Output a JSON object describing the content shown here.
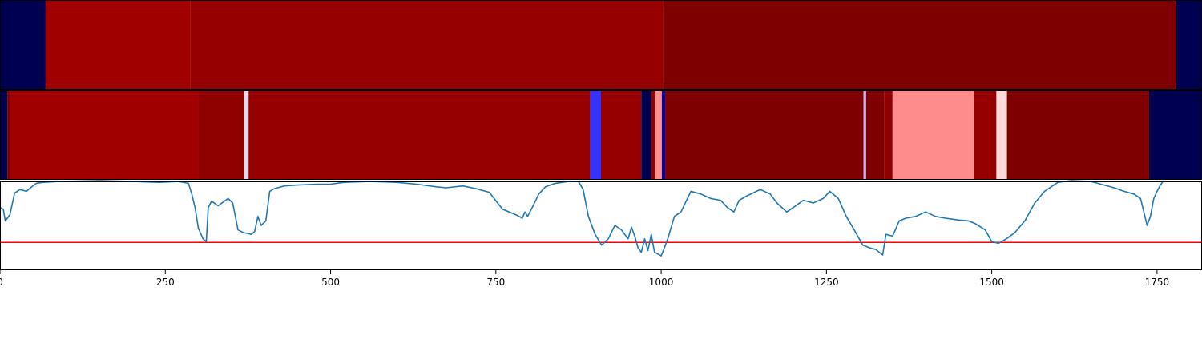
{
  "chart_data": {
    "type": "heatmap",
    "xlim": [
      0,
      1818
    ],
    "xticks": [
      {
        "value": 0,
        "label": "0"
      },
      {
        "value": 250,
        "label": "250"
      },
      {
        "value": 500,
        "label": "500"
      },
      {
        "value": 750,
        "label": "750"
      },
      {
        "value": 1000,
        "label": "1000"
      },
      {
        "value": 1250,
        "label": "1250"
      },
      {
        "value": 1500,
        "label": "1500"
      },
      {
        "value": 1750,
        "label": "1750"
      }
    ],
    "band_top": [
      {
        "x0": 0,
        "x1": 69,
        "color": "#000050"
      },
      {
        "x0": 69,
        "x1": 288,
        "color": "#a00000"
      },
      {
        "x0": 288,
        "x1": 1003,
        "color": "#960000"
      },
      {
        "x0": 1003,
        "x1": 1779,
        "color": "#7f0000"
      },
      {
        "x0": 1779,
        "x1": 1818,
        "color": "#000050"
      }
    ],
    "band_mid": [
      {
        "x0": 0,
        "x1": 11,
        "color": "#000050"
      },
      {
        "x0": 11,
        "x1": 15,
        "color": "#800000"
      },
      {
        "x0": 15,
        "x1": 300,
        "color": "#a00000"
      },
      {
        "x0": 300,
        "x1": 369,
        "color": "#8f0000"
      },
      {
        "x0": 369,
        "x1": 376,
        "color": "#e6d8ea"
      },
      {
        "x0": 376,
        "x1": 893,
        "color": "#960000"
      },
      {
        "x0": 893,
        "x1": 909,
        "color": "#3333ff"
      },
      {
        "x0": 909,
        "x1": 970,
        "color": "#960000"
      },
      {
        "x0": 970,
        "x1": 985,
        "color": "#000050"
      },
      {
        "x0": 985,
        "x1": 991,
        "color": "#8f0000"
      },
      {
        "x0": 991,
        "x1": 1001,
        "color": "#ff9090"
      },
      {
        "x0": 1001,
        "x1": 1006,
        "color": "#0000a0"
      },
      {
        "x0": 1006,
        "x1": 1306,
        "color": "#7f0000"
      },
      {
        "x0": 1306,
        "x1": 1310,
        "color": "#c8b4e8"
      },
      {
        "x0": 1310,
        "x1": 1337,
        "color": "#7f0000"
      },
      {
        "x0": 1337,
        "x1": 1350,
        "color": "#8f0000"
      },
      {
        "x0": 1350,
        "x1": 1473,
        "color": "#ff8c8c"
      },
      {
        "x0": 1473,
        "x1": 1507,
        "color": "#960000"
      },
      {
        "x0": 1507,
        "x1": 1523,
        "color": "#ffd8d8"
      },
      {
        "x0": 1523,
        "x1": 1738,
        "color": "#7f0000"
      },
      {
        "x0": 1738,
        "x1": 1818,
        "color": "#000050"
      }
    ],
    "line_panel": {
      "ylim": [
        0,
        1
      ],
      "threshold": 0.31,
      "threshold_color": "#ff0000",
      "line_color": "#1f77b4",
      "series": [
        [
          0,
          0.7
        ],
        [
          5,
          0.68
        ],
        [
          8,
          0.55
        ],
        [
          15,
          0.62
        ],
        [
          22,
          0.86
        ],
        [
          30,
          0.9
        ],
        [
          40,
          0.88
        ],
        [
          48,
          0.93
        ],
        [
          55,
          0.97
        ],
        [
          65,
          0.98
        ],
        [
          90,
          0.99
        ],
        [
          150,
          1.0
        ],
        [
          200,
          0.99
        ],
        [
          240,
          0.98
        ],
        [
          270,
          0.99
        ],
        [
          285,
          0.97
        ],
        [
          290,
          0.85
        ],
        [
          295,
          0.7
        ],
        [
          300,
          0.47
        ],
        [
          307,
          0.35
        ],
        [
          312,
          0.32
        ],
        [
          315,
          0.7
        ],
        [
          320,
          0.77
        ],
        [
          330,
          0.72
        ],
        [
          345,
          0.8
        ],
        [
          352,
          0.75
        ],
        [
          360,
          0.45
        ],
        [
          368,
          0.42
        ],
        [
          375,
          0.41
        ],
        [
          380,
          0.4
        ],
        [
          385,
          0.43
        ],
        [
          390,
          0.6
        ],
        [
          395,
          0.5
        ],
        [
          402,
          0.55
        ],
        [
          408,
          0.88
        ],
        [
          415,
          0.91
        ],
        [
          430,
          0.94
        ],
        [
          450,
          0.95
        ],
        [
          480,
          0.96
        ],
        [
          500,
          0.96
        ],
        [
          520,
          0.98
        ],
        [
          560,
          0.99
        ],
        [
          600,
          0.98
        ],
        [
          630,
          0.96
        ],
        [
          660,
          0.93
        ],
        [
          675,
          0.92
        ],
        [
          700,
          0.94
        ],
        [
          720,
          0.91
        ],
        [
          740,
          0.87
        ],
        [
          760,
          0.68
        ],
        [
          780,
          0.62
        ],
        [
          790,
          0.58
        ],
        [
          794,
          0.65
        ],
        [
          798,
          0.6
        ],
        [
          805,
          0.7
        ],
        [
          815,
          0.85
        ],
        [
          825,
          0.93
        ],
        [
          840,
          0.97
        ],
        [
          860,
          0.99
        ],
        [
          875,
          0.99
        ],
        [
          882,
          0.9
        ],
        [
          890,
          0.6
        ],
        [
          900,
          0.4
        ],
        [
          910,
          0.28
        ],
        [
          920,
          0.35
        ],
        [
          930,
          0.5
        ],
        [
          940,
          0.45
        ],
        [
          950,
          0.35
        ],
        [
          955,
          0.48
        ],
        [
          960,
          0.38
        ],
        [
          965,
          0.25
        ],
        [
          970,
          0.2
        ],
        [
          975,
          0.35
        ],
        [
          980,
          0.22
        ],
        [
          985,
          0.4
        ],
        [
          990,
          0.2
        ],
        [
          995,
          0.18
        ],
        [
          1000,
          0.16
        ],
        [
          1005,
          0.25
        ],
        [
          1010,
          0.35
        ],
        [
          1020,
          0.6
        ],
        [
          1030,
          0.65
        ],
        [
          1045,
          0.88
        ],
        [
          1060,
          0.85
        ],
        [
          1075,
          0.8
        ],
        [
          1090,
          0.78
        ],
        [
          1100,
          0.7
        ],
        [
          1110,
          0.65
        ],
        [
          1118,
          0.78
        ],
        [
          1130,
          0.83
        ],
        [
          1150,
          0.9
        ],
        [
          1165,
          0.85
        ],
        [
          1175,
          0.75
        ],
        [
          1190,
          0.65
        ],
        [
          1200,
          0.7
        ],
        [
          1215,
          0.78
        ],
        [
          1230,
          0.75
        ],
        [
          1245,
          0.8
        ],
        [
          1255,
          0.88
        ],
        [
          1268,
          0.8
        ],
        [
          1280,
          0.6
        ],
        [
          1292,
          0.45
        ],
        [
          1305,
          0.28
        ],
        [
          1315,
          0.25
        ],
        [
          1325,
          0.23
        ],
        [
          1335,
          0.17
        ],
        [
          1340,
          0.4
        ],
        [
          1350,
          0.38
        ],
        [
          1360,
          0.55
        ],
        [
          1370,
          0.58
        ],
        [
          1385,
          0.6
        ],
        [
          1400,
          0.65
        ],
        [
          1415,
          0.6
        ],
        [
          1430,
          0.58
        ],
        [
          1450,
          0.56
        ],
        [
          1465,
          0.55
        ],
        [
          1475,
          0.52
        ],
        [
          1490,
          0.45
        ],
        [
          1500,
          0.32
        ],
        [
          1510,
          0.3
        ],
        [
          1522,
          0.35
        ],
        [
          1535,
          0.42
        ],
        [
          1550,
          0.55
        ],
        [
          1565,
          0.75
        ],
        [
          1580,
          0.88
        ],
        [
          1600,
          0.98
        ],
        [
          1620,
          1.0
        ],
        [
          1650,
          0.99
        ],
        [
          1670,
          0.95
        ],
        [
          1685,
          0.92
        ],
        [
          1700,
          0.88
        ],
        [
          1715,
          0.85
        ],
        [
          1725,
          0.8
        ],
        [
          1735,
          0.5
        ],
        [
          1740,
          0.6
        ],
        [
          1745,
          0.8
        ],
        [
          1750,
          0.88
        ],
        [
          1755,
          0.95
        ],
        [
          1760,
          1.0
        ]
      ]
    }
  }
}
